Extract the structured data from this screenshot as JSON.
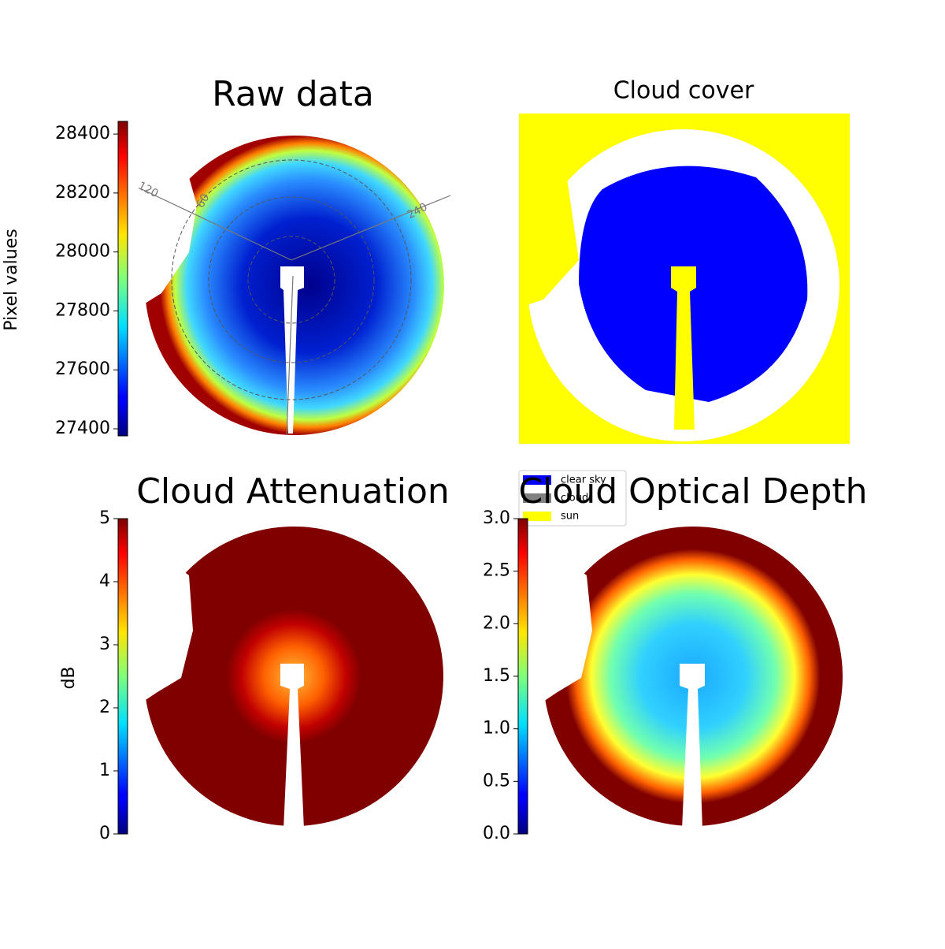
{
  "chart_data": [
    {
      "type": "image",
      "title": "Raw data",
      "colorbar_label": "Pixel values",
      "colormap": "jet",
      "clim": [
        27376,
        28443
      ],
      "cticks": [
        27400,
        27600,
        27800,
        28000,
        28200,
        28400
      ],
      "annotations": [
        "120",
        "60",
        "240"
      ]
    },
    {
      "type": "image",
      "title": "Cloud cover",
      "series": [
        {
          "name": "clear sky",
          "color": "#0000ff"
        },
        {
          "name": "cloud",
          "color": "#808080"
        },
        {
          "name": "sun",
          "color": "#ffff00"
        }
      ]
    },
    {
      "type": "image",
      "title": "Cloud Attenuation",
      "colorbar_label": "dB",
      "colormap": "jet",
      "clim": [
        0,
        5
      ],
      "cticks": [
        0,
        1,
        2,
        3,
        4,
        5
      ]
    },
    {
      "type": "image",
      "title": "Cloud Optical Depth",
      "colormap": "jet",
      "clim": [
        0,
        3
      ],
      "cticks": [
        {
          "value": 0,
          "label": "0.0"
        },
        {
          "value": 0.5,
          "label": "0.5"
        },
        {
          "value": 1,
          "label": "1.0"
        },
        {
          "value": 1.5,
          "label": "1.5"
        },
        {
          "value": 2,
          "label": "2.0"
        },
        {
          "value": 2.5,
          "label": "2.5"
        },
        {
          "value": 3,
          "label": "3.0"
        }
      ]
    }
  ]
}
